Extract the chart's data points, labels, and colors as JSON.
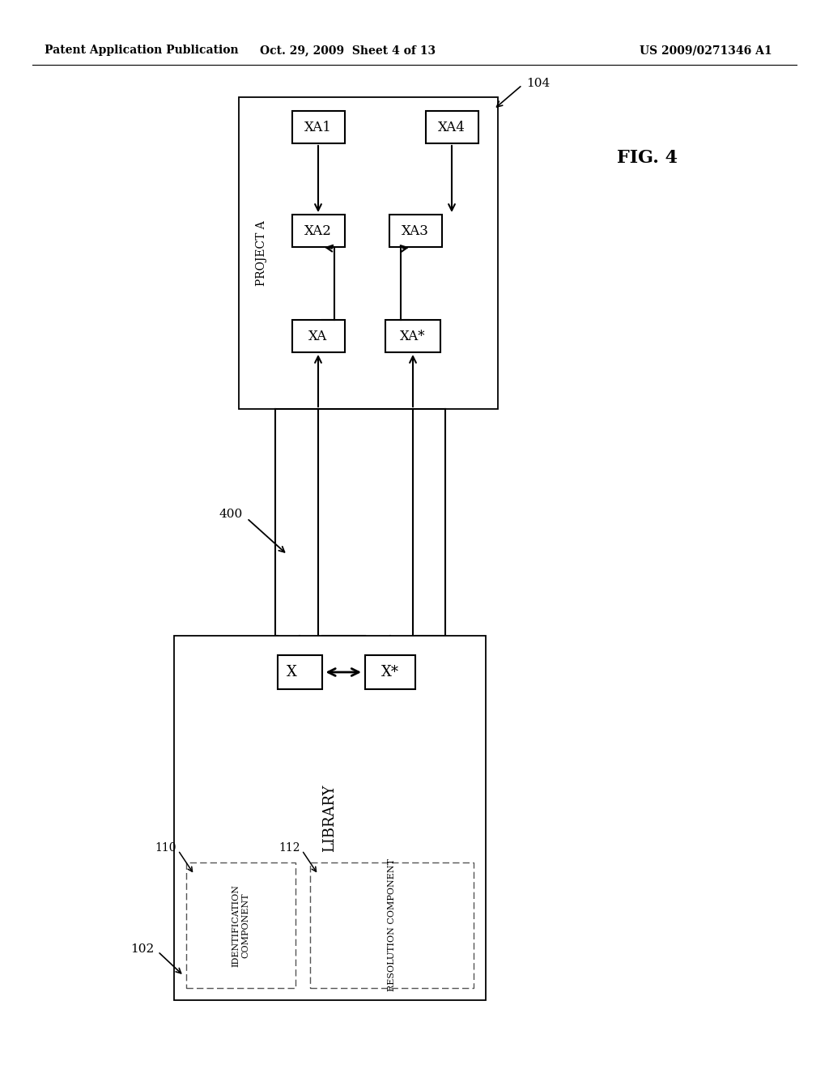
{
  "bg_color": "#ffffff",
  "header_left": "Patent Application Publication",
  "header_mid": "Oct. 29, 2009  Sheet 4 of 13",
  "header_right": "US 2009/0271346 A1",
  "fig_label": "FIG. 4",
  "label_400": "400",
  "label_102": "102",
  "label_104": "104",
  "label_110": "110",
  "label_112": "112",
  "box_X_label": "X",
  "box_Xstar_label": "X*",
  "box_XA_label": "XA",
  "box_XAstar_label": "XA*",
  "box_XA1_label": "XA1",
  "box_XA2_label": "XA2",
  "box_XA3_label": "XA3",
  "box_XA4_label": "XA4",
  "text_project_a": "PROJECT A",
  "text_library": "LIBRARY",
  "text_identification_component": "IDENTIFICATION\nCOMPONENT",
  "text_resolution_component": "RESOLUTION COMPONENT"
}
